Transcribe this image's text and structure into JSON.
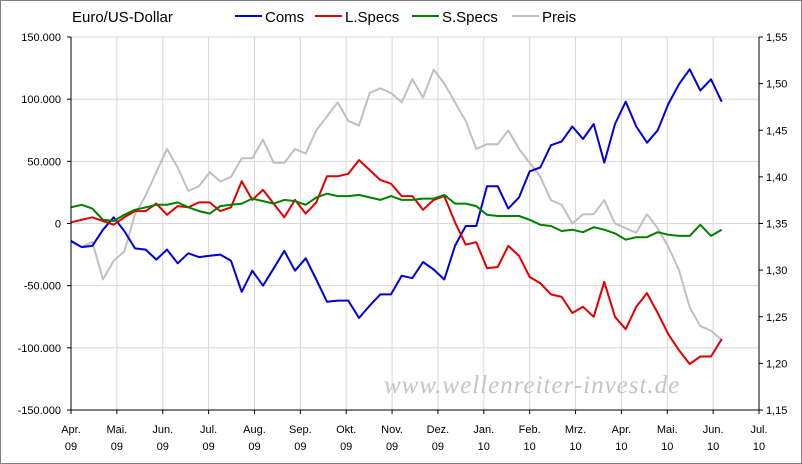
{
  "chart_data": {
    "type": "line",
    "title": "Euro/US-Dollar",
    "watermark": "www.wellenreiter-invest.de",
    "x_ticks": [
      [
        "Apr.",
        "09"
      ],
      [
        "Mai.",
        "09"
      ],
      [
        "Jun.",
        "09"
      ],
      [
        "Jul.",
        "09"
      ],
      [
        "Aug.",
        "09"
      ],
      [
        "Sep.",
        "09"
      ],
      [
        "Okt.",
        "09"
      ],
      [
        "Nov.",
        "09"
      ],
      [
        "Dez.",
        "09"
      ],
      [
        "Jan.",
        "10"
      ],
      [
        "Feb.",
        "10"
      ],
      [
        "Mrz.",
        "10"
      ],
      [
        "Apr.",
        "10"
      ],
      [
        "Mai.",
        "10"
      ],
      [
        "Jun.",
        "10"
      ],
      [
        "Jul.",
        "10"
      ]
    ],
    "y_left": {
      "min": -150000,
      "max": 150000,
      "ticks": [
        150000,
        100000,
        50000,
        0,
        -50000,
        -100000,
        -150000
      ],
      "tick_labels": [
        "150.000",
        "100.000",
        "50.000",
        "0",
        "-50.000",
        "-100.000",
        "-150.000"
      ],
      "negative_color": "#ff0000"
    },
    "y_right": {
      "min": 1.15,
      "max": 1.55,
      "ticks": [
        1.55,
        1.5,
        1.45,
        1.4,
        1.35,
        1.3,
        1.25,
        1.2,
        1.15
      ],
      "tick_labels": [
        "1,55",
        "1,50",
        "1,45",
        "1,40",
        "1,35",
        "1,30",
        "1,25",
        "1,20",
        "1,15"
      ]
    },
    "x_start_month_index": 0,
    "points_per_month": 4.3,
    "series": [
      {
        "name": "Coms",
        "color": "#0000dd",
        "axis": "left",
        "values": [
          -14000,
          -19000,
          -18000,
          -5000,
          5000,
          -6000,
          -20000,
          -21000,
          -29000,
          -21000,
          -32000,
          -24000,
          -27000,
          -26000,
          -25000,
          -30000,
          -55000,
          -38000,
          -50000,
          -36000,
          -22000,
          -38000,
          -28000,
          -45000,
          -63000,
          -62000,
          -62000,
          -76000,
          -66000,
          -57000,
          -57000,
          -42000,
          -44000,
          -31000,
          -37000,
          -45000,
          -18000,
          -2000,
          -2000,
          30000,
          30000,
          12000,
          21000,
          42000,
          45000,
          63000,
          66000,
          78000,
          68000,
          80000,
          49000,
          80000,
          98000,
          78000,
          65000,
          75000,
          96000,
          112000,
          124000,
          107000,
          116000,
          98000
        ]
      },
      {
        "name": "L.Specs",
        "color": "#e00000",
        "axis": "left",
        "values": [
          1000,
          3000,
          5000,
          2000,
          -1000,
          5000,
          10000,
          10000,
          16000,
          7000,
          14000,
          13000,
          17000,
          17000,
          10000,
          13000,
          34000,
          19000,
          27000,
          16000,
          5000,
          19000,
          8000,
          17000,
          38000,
          38000,
          40000,
          51000,
          43000,
          35000,
          32000,
          22000,
          22000,
          11000,
          19000,
          22000,
          1000,
          -17000,
          -15000,
          -36000,
          -35000,
          -18000,
          -26000,
          -43000,
          -48000,
          -57000,
          -59000,
          -72000,
          -67000,
          -75000,
          -47000,
          -75000,
          -85000,
          -67000,
          -56000,
          -72000,
          -89000,
          -102000,
          -113000,
          -107000,
          -107000,
          -93000
        ]
      },
      {
        "name": "S.Specs",
        "color": "#008000",
        "axis": "left",
        "values": [
          13000,
          15000,
          12000,
          3000,
          2000,
          7000,
          11000,
          13000,
          15000,
          15000,
          17000,
          13000,
          10000,
          8000,
          14000,
          15000,
          16000,
          20000,
          18000,
          16000,
          19000,
          18000,
          15000,
          21000,
          24000,
          22000,
          22000,
          23000,
          21000,
          19000,
          22000,
          19000,
          19000,
          20000,
          20000,
          23000,
          16000,
          16000,
          14000,
          7000,
          6000,
          6000,
          6000,
          3000,
          -1000,
          -2000,
          -6000,
          -5000,
          -7000,
          -3000,
          -5000,
          -8000,
          -13000,
          -11000,
          -11000,
          -7000,
          -9000,
          -10000,
          -10000,
          -1000,
          -10000,
          -5000
        ]
      },
      {
        "name": "Preis",
        "color": "#c0c0c0",
        "axis": "right",
        "values": [
          1.33,
          1.325,
          1.33,
          1.29,
          1.31,
          1.32,
          1.36,
          1.38,
          1.405,
          1.43,
          1.41,
          1.385,
          1.39,
          1.405,
          1.395,
          1.4,
          1.42,
          1.42,
          1.44,
          1.415,
          1.415,
          1.43,
          1.425,
          1.45,
          1.465,
          1.48,
          1.46,
          1.455,
          1.49,
          1.495,
          1.49,
          1.48,
          1.505,
          1.485,
          1.515,
          1.5,
          1.48,
          1.46,
          1.43,
          1.435,
          1.435,
          1.45,
          1.43,
          1.415,
          1.4,
          1.375,
          1.37,
          1.35,
          1.36,
          1.36,
          1.375,
          1.35,
          1.345,
          1.34,
          1.36,
          1.345,
          1.325,
          1.3,
          1.26,
          1.24,
          1.235,
          1.225
        ]
      }
    ]
  }
}
